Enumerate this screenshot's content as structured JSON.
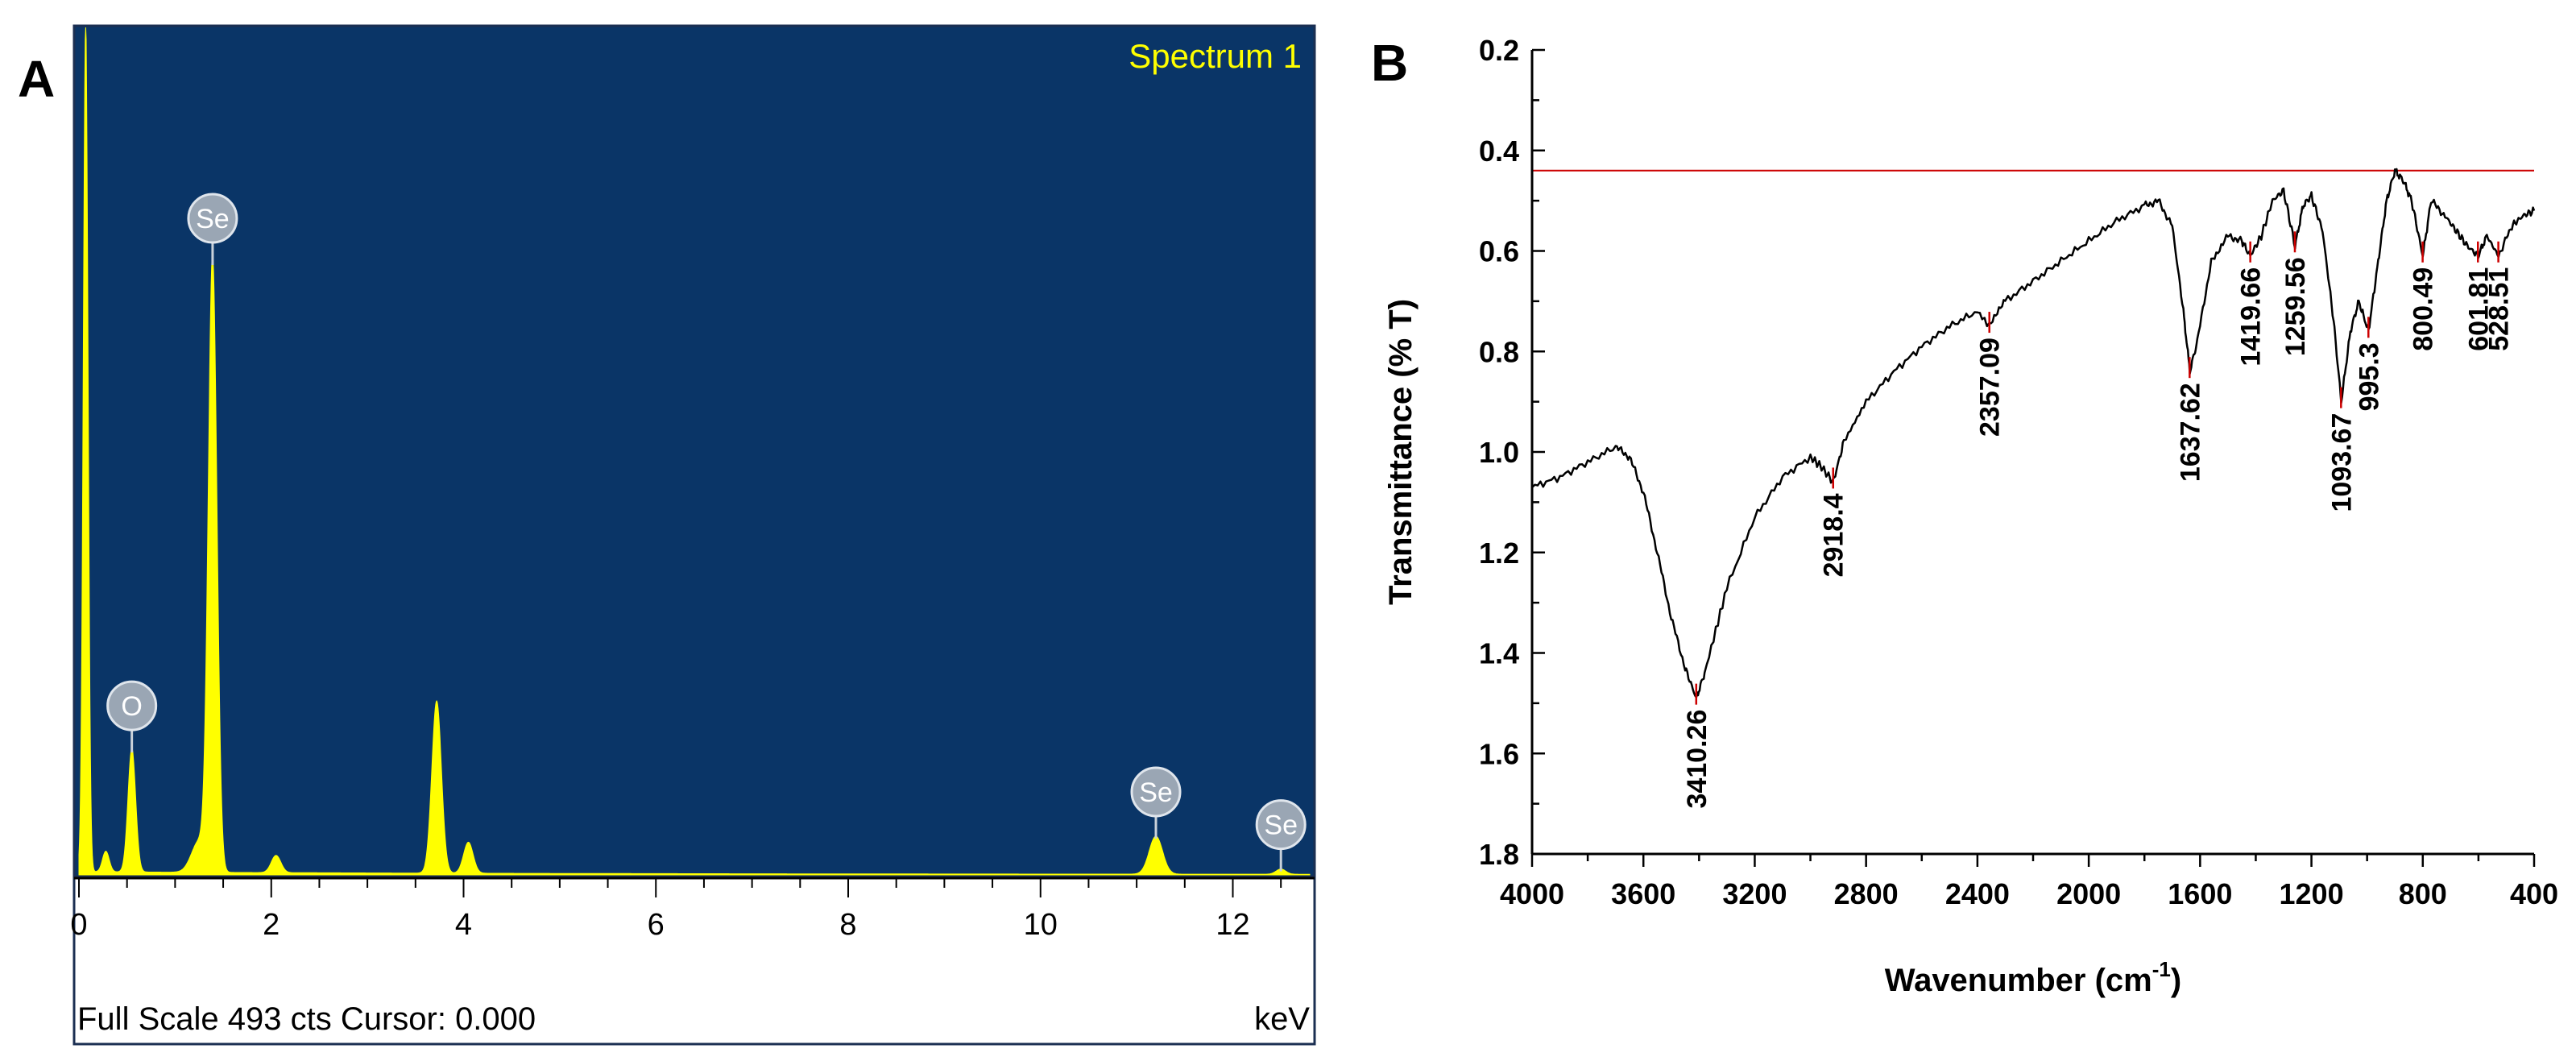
{
  "panels": {
    "a_label": "A",
    "b_label": "B"
  },
  "colors": {
    "eds_background": "#0a3567",
    "eds_spectrum": "#ffff00",
    "badge": "#9aa6b4",
    "ftir_line": "#000000",
    "ftir_reference": "#cc0000",
    "peak_marker": "#cc0000"
  },
  "chart_data": [
    {
      "type": "area",
      "name": "EDS spectrum",
      "title": "Spectrum 1",
      "xlabel": "keV",
      "footer": "Full Scale 493 cts Cursor: 0.000",
      "xlim": [
        0,
        12.8
      ],
      "ylim": [
        0,
        493
      ],
      "x_ticks": [
        0,
        2,
        4,
        6,
        8,
        10,
        12
      ],
      "x_tick_labels": [
        "0",
        "2",
        "4",
        "6",
        "8",
        "10",
        "12"
      ],
      "peaks": [
        {
          "x": 0.07,
          "y": 493,
          "width": 0.025
        },
        {
          "x": 0.28,
          "y": 12,
          "width": 0.035
        },
        {
          "x": 0.55,
          "y": 72,
          "width": 0.04
        },
        {
          "x": 1.39,
          "y": 355,
          "width": 0.045
        },
        {
          "x": 1.25,
          "y": 18,
          "width": 0.08
        },
        {
          "x": 2.05,
          "y": 10,
          "width": 0.05
        },
        {
          "x": 3.72,
          "y": 100,
          "width": 0.05
        },
        {
          "x": 4.05,
          "y": 18,
          "width": 0.05
        },
        {
          "x": 11.2,
          "y": 22,
          "width": 0.07
        },
        {
          "x": 12.5,
          "y": 3,
          "width": 0.05
        }
      ],
      "element_labels": [
        {
          "symbol": "O",
          "x": 0.55,
          "y": 72
        },
        {
          "symbol": "Se",
          "x": 1.39,
          "y": 355
        },
        {
          "symbol": "Se",
          "x": 11.2,
          "y": 22
        },
        {
          "symbol": "Se",
          "x": 12.5,
          "y": 3
        }
      ]
    },
    {
      "type": "line",
      "name": "FTIR spectrum",
      "xlabel": "Wavenumber (cm",
      "xlabel_superscript": "-1",
      "xlabel_suffix": ")",
      "ylabel": "Transmittance (% T)",
      "xlim": [
        4000,
        400
      ],
      "ylim": [
        0.2,
        1.8
      ],
      "x_ticks": [
        4000,
        3600,
        3200,
        2800,
        2400,
        2000,
        1600,
        1200,
        800,
        400
      ],
      "x_tick_labels": [
        "4000",
        "3600",
        "3200",
        "2800",
        "2400",
        "2000",
        "1600",
        "1200",
        "800",
        "400"
      ],
      "y_ticks": [
        0.2,
        0.4,
        0.6,
        0.8,
        1.0,
        1.2,
        1.4,
        1.6,
        1.8
      ],
      "y_tick_labels": [
        "0.2",
        "0.4",
        "0.6",
        "0.8",
        "1.0",
        "1.2",
        "1.4",
        "1.6",
        "1.8"
      ],
      "reference_line_y": 0.44,
      "x": [
        4000,
        3900,
        3800,
        3700,
        3650,
        3600,
        3550,
        3500,
        3450,
        3410,
        3380,
        3300,
        3200,
        3100,
        3000,
        2960,
        2918,
        2880,
        2800,
        2700,
        2600,
        2500,
        2400,
        2357,
        2300,
        2200,
        2100,
        2000,
        1900,
        1800,
        1750,
        1700,
        1660,
        1637,
        1610,
        1560,
        1500,
        1450,
        1420,
        1380,
        1340,
        1300,
        1259,
        1230,
        1200,
        1160,
        1120,
        1093,
        1060,
        1030,
        995,
        960,
        930,
        900,
        870,
        840,
        800,
        770,
        720,
        680,
        640,
        601,
        570,
        528,
        480,
        440,
        400
      ],
      "y": [
        1.07,
        1.05,
        1.02,
        0.99,
        1.01,
        1.08,
        1.2,
        1.33,
        1.43,
        1.49,
        1.44,
        1.27,
        1.13,
        1.05,
        1.01,
        1.03,
        1.06,
        0.98,
        0.9,
        0.84,
        0.79,
        0.75,
        0.72,
        0.75,
        0.7,
        0.66,
        0.62,
        0.58,
        0.54,
        0.51,
        0.5,
        0.55,
        0.72,
        0.84,
        0.78,
        0.62,
        0.57,
        0.58,
        0.61,
        0.57,
        0.5,
        0.48,
        0.59,
        0.51,
        0.49,
        0.56,
        0.74,
        0.9,
        0.76,
        0.7,
        0.76,
        0.62,
        0.5,
        0.44,
        0.46,
        0.5,
        0.61,
        0.5,
        0.53,
        0.56,
        0.59,
        0.61,
        0.57,
        0.61,
        0.55,
        0.53,
        0.52
      ],
      "peak_labels": [
        {
          "x": 3410.26,
          "y": 1.49,
          "label": "3410.26"
        },
        {
          "x": 2918.4,
          "y": 1.06,
          "label": "2918.4"
        },
        {
          "x": 2357.09,
          "y": 0.75,
          "label": "2357.09"
        },
        {
          "x": 1637.62,
          "y": 0.84,
          "label": "1637.62"
        },
        {
          "x": 1419.66,
          "y": 0.61,
          "label": "1419.66"
        },
        {
          "x": 1259.56,
          "y": 0.59,
          "label": "1259.56"
        },
        {
          "x": 1093.67,
          "y": 0.9,
          "label": "1093.67"
        },
        {
          "x": 995.3,
          "y": 0.76,
          "label": "995.3"
        },
        {
          "x": 800.49,
          "y": 0.61,
          "label": "800.49"
        },
        {
          "x": 601.81,
          "y": 0.61,
          "label": "601.81"
        },
        {
          "x": 528.51,
          "y": 0.61,
          "label": "528.51"
        }
      ]
    }
  ]
}
